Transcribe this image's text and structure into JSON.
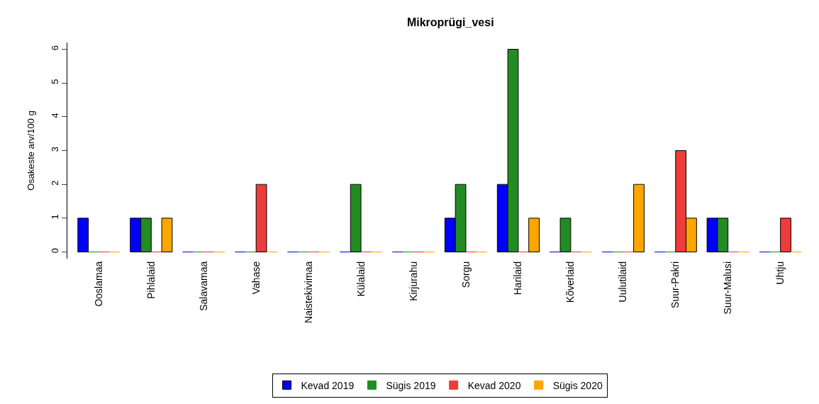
{
  "chart_data": {
    "type": "bar",
    "title": "Mikroprügi_vesi",
    "ylabel": "Osakeste arv/100 g",
    "categories": [
      "Ooslamaa",
      "Pihlalaid",
      "Salavamaa",
      "Vahase",
      "Naistekivimaa",
      "Külalaid",
      "Kirjurahu",
      "Sorgu",
      "Harilaid",
      "Kõverlaid",
      "Uulutilaid",
      "Suur-Pakri",
      "Suur-Malusi",
      "Uhtju"
    ],
    "series": [
      {
        "name": "Kevad 2019",
        "color": "#0000ff",
        "values": [
          1,
          1,
          0,
          0,
          0,
          0,
          0,
          1,
          2,
          0,
          0,
          0,
          1,
          0
        ]
      },
      {
        "name": "Sügis 2019",
        "color": "#228b22",
        "values": [
          0,
          1,
          0,
          0,
          0,
          2,
          0,
          2,
          6,
          1,
          0,
          0,
          1,
          0
        ]
      },
      {
        "name": "Kevad 2020",
        "color": "#ee3b3b",
        "values": [
          0,
          0,
          0,
          2,
          0,
          0,
          0,
          0,
          0,
          0,
          0,
          3,
          0,
          1
        ]
      },
      {
        "name": "Sügis 2020",
        "color": "#ffa500",
        "values": [
          0,
          1,
          0,
          0,
          0,
          0,
          0,
          0,
          1,
          0,
          2,
          1,
          0,
          0
        ]
      }
    ],
    "ylim": [
      -0.2,
      6.2
    ],
    "yticks": [
      0,
      1,
      2,
      3,
      4,
      5,
      6
    ],
    "grid": false,
    "legend": "bottom"
  }
}
